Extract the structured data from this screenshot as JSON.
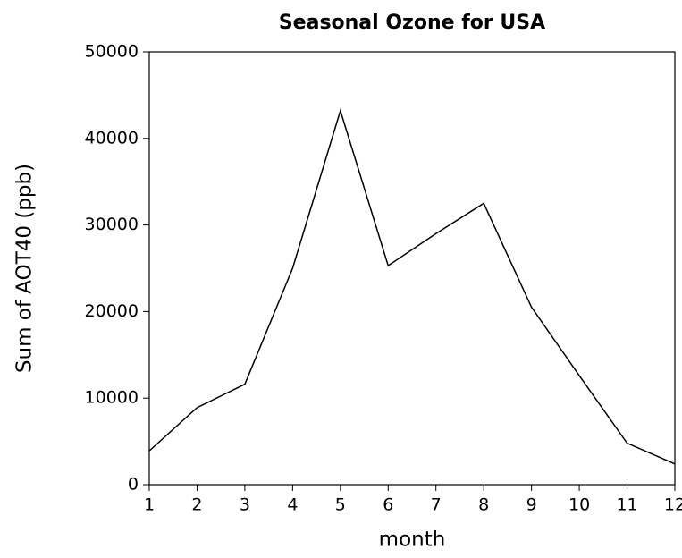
{
  "chart_data": {
    "type": "line",
    "title": "Seasonal Ozone for USA",
    "x_label": "month",
    "y_label": "Sum of AOT40 (ppb)",
    "x": [
      1,
      2,
      3,
      4,
      5,
      6,
      7,
      8,
      9,
      10,
      11,
      12
    ],
    "series": [
      {
        "color": "#000000",
        "values": [
          3900,
          8900,
          11600,
          25000,
          43200,
          25300,
          29000,
          32500,
          20500,
          12600,
          4800,
          2400
        ]
      }
    ],
    "xlim": [
      1,
      12
    ],
    "xticks": [
      1,
      2,
      3,
      4,
      5,
      6,
      7,
      8,
      9,
      10,
      11,
      12
    ],
    "ylim": [
      0,
      50000
    ],
    "yticks": [
      0,
      10000,
      20000,
      30000,
      40000,
      50000
    ]
  }
}
